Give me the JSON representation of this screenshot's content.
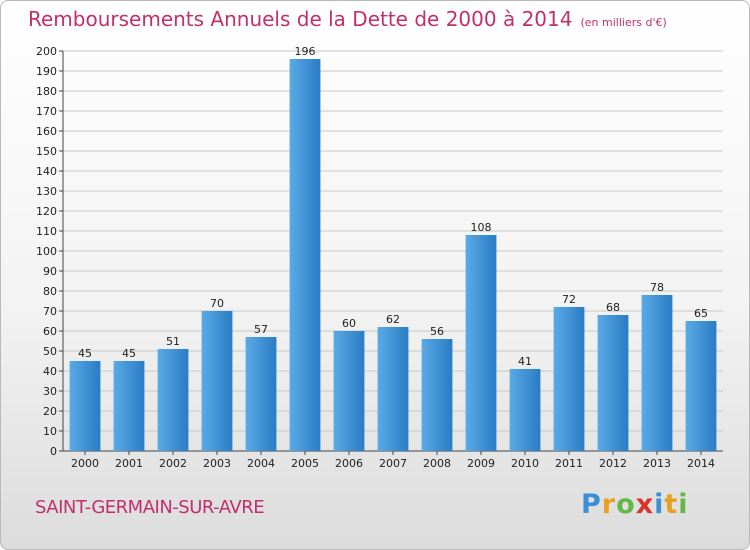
{
  "header": {
    "title": "Remboursements Annuels de la Dette de 2000 à 2014",
    "unit": "(en milliers d'€)"
  },
  "footer": {
    "commune": "SAINT-GERMAIN-SUR-AVRE",
    "logo": "Proxiti"
  },
  "colors": {
    "title": "#c0306c",
    "bar_light": "#5aaae6",
    "bar_dark": "#2a7cc4",
    "grid": "#c8c8c8"
  },
  "chart_data": {
    "type": "bar",
    "title": "Remboursements Annuels de la Dette de 2000 à 2014",
    "xlabel": "",
    "ylabel": "",
    "ylim": [
      0,
      200
    ],
    "ytick_step": 10,
    "grid": true,
    "categories": [
      "2000",
      "2001",
      "2002",
      "2003",
      "2004",
      "2005",
      "2006",
      "2007",
      "2008",
      "2009",
      "2010",
      "2011",
      "2012",
      "2013",
      "2014"
    ],
    "values": [
      45,
      45,
      51,
      70,
      57,
      196,
      60,
      62,
      56,
      108,
      41,
      72,
      68,
      78,
      65
    ]
  }
}
